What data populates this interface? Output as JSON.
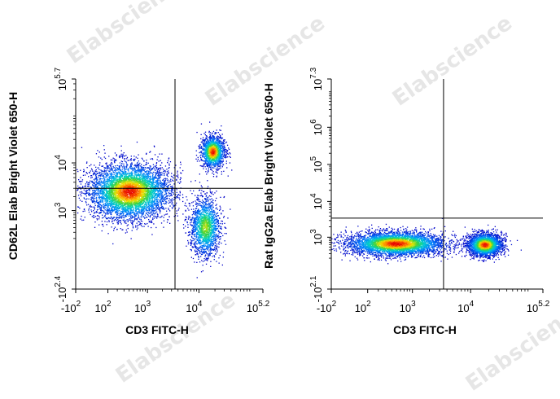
{
  "watermark_text": "Elabscience",
  "chart_data": [
    {
      "type": "scatter",
      "subtype": "flow-cytometry-density-dot-plot",
      "xlabel": "CD3 FITC-H",
      "ylabel": "CD62L Elab Bright Violet 650-H",
      "x_ticks": [
        {
          "value": -100,
          "label": "-10",
          "sup": "2"
        },
        {
          "value": 100,
          "label": "10",
          "sup": "2"
        },
        {
          "value": 1000,
          "label": "10",
          "sup": "3"
        },
        {
          "value": 10000,
          "label": "10",
          "sup": "4"
        },
        {
          "value": 158489,
          "label": "10",
          "sup": "5.2"
        }
      ],
      "y_ticks": [
        {
          "value": -251,
          "label": "-10",
          "sup": "2.4"
        },
        {
          "value": 1000,
          "label": "10",
          "sup": "3"
        },
        {
          "value": 10000,
          "label": "10",
          "sup": "4"
        },
        {
          "value": 501187,
          "label": "10",
          "sup": "5.7"
        }
      ],
      "gate": {
        "x": 3500,
        "y": 3000
      },
      "populations": [
        {
          "x": 400,
          "y": 2600,
          "count": 5200,
          "sx": 0.38,
          "sy": 0.28,
          "peak": "red"
        },
        {
          "x": 18000,
          "y": 17000,
          "count": 1400,
          "sx": 0.11,
          "sy": 0.16,
          "peak": "red"
        },
        {
          "x": 13000,
          "y": 420,
          "count": 1600,
          "sx": 0.14,
          "sy": 0.3,
          "peak": "green"
        }
      ]
    },
    {
      "type": "scatter",
      "subtype": "flow-cytometry-density-dot-plot",
      "xlabel": "CD3 FITC-H",
      "ylabel": "Rat IgG2a Elab Bright Violet 650-H",
      "x_ticks": [
        {
          "value": -100,
          "label": "-10",
          "sup": "2"
        },
        {
          "value": 100,
          "label": "10",
          "sup": "2"
        },
        {
          "value": 1000,
          "label": "10",
          "sup": "3"
        },
        {
          "value": 10000,
          "label": "10",
          "sup": "4"
        },
        {
          "value": 158489,
          "label": "10",
          "sup": "5.2"
        }
      ],
      "y_ticks": [
        {
          "value": -126,
          "label": "-10",
          "sup": "2.1"
        },
        {
          "value": 1000,
          "label": "10",
          "sup": "3"
        },
        {
          "value": 10000,
          "label": "10",
          "sup": "4"
        },
        {
          "value": 100000,
          "label": "10",
          "sup": "5"
        },
        {
          "value": 1000000,
          "label": "10",
          "sup": "6"
        },
        {
          "value": 19952623,
          "label": "10",
          "sup": "7.3"
        }
      ],
      "gate": {
        "x": 3500,
        "y": 3500
      },
      "populations": [
        {
          "x": 480,
          "y": 650,
          "count": 4200,
          "sx": 0.4,
          "sy": 0.16,
          "peak": "red"
        },
        {
          "x": 17000,
          "y": 600,
          "count": 2600,
          "sx": 0.14,
          "sy": 0.15,
          "peak": "red"
        }
      ]
    }
  ]
}
